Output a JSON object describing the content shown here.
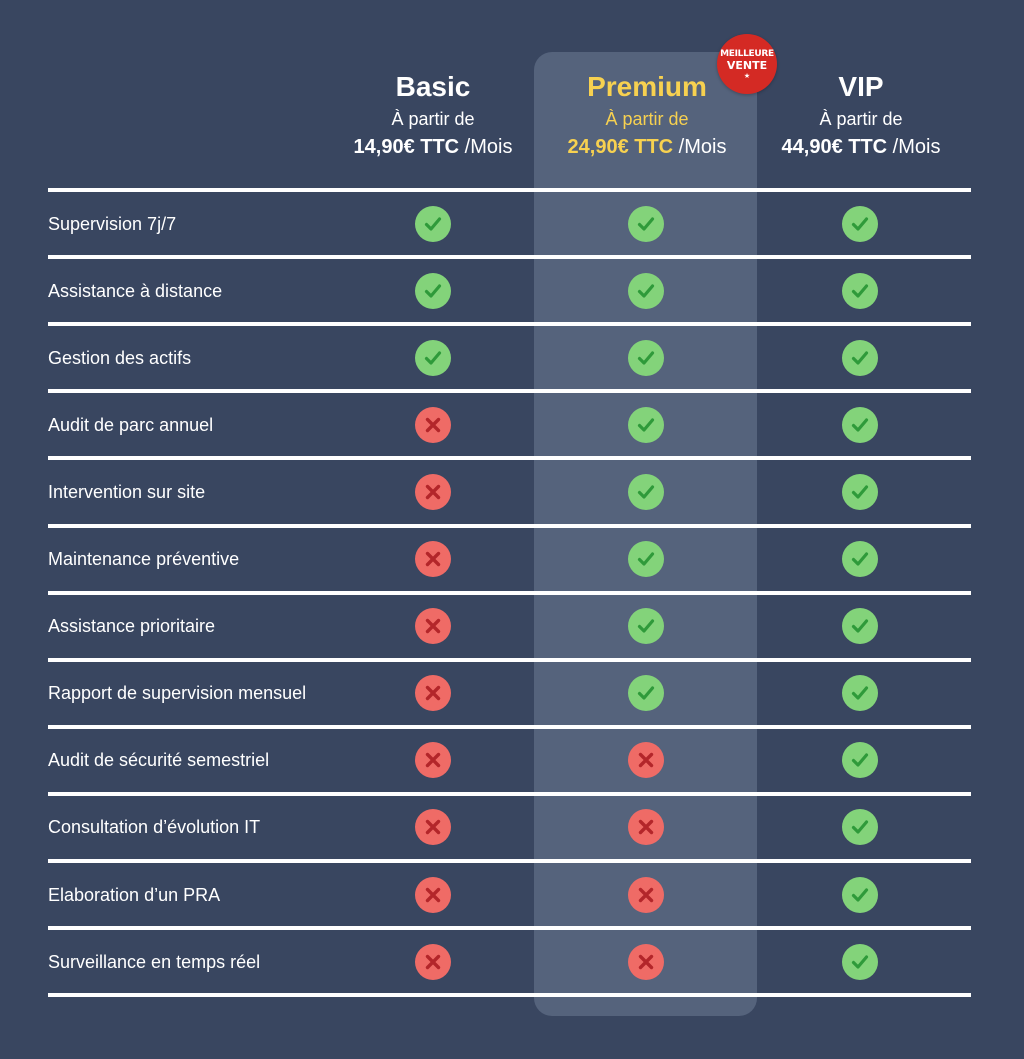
{
  "badge": {
    "line1": "MEILLEURE",
    "line2": "VENTE",
    "star": "★"
  },
  "plans": [
    {
      "name": "Basic",
      "from": "À partir de",
      "amount": "14,90€ TTC",
      "period": " /Mois",
      "featured": false
    },
    {
      "name": "Premium",
      "from": "À partir de",
      "amount": "24,90€ TTC",
      "period": " /Mois",
      "featured": true
    },
    {
      "name": "VIP",
      "from": "À partir de",
      "amount": "44,90€ TTC",
      "period": " /Mois",
      "featured": false
    }
  ],
  "colors": {
    "background": "#394660",
    "highlight": "#55637c",
    "accent": "#f7d150",
    "check": "#83d37a",
    "cross": "#ef6b66",
    "badge": "#d42a24"
  },
  "features": [
    {
      "label": "Supervision 7j/7",
      "values": [
        true,
        true,
        true
      ]
    },
    {
      "label": "Assistance à distance",
      "values": [
        true,
        true,
        true
      ]
    },
    {
      "label": "Gestion des actifs",
      "values": [
        true,
        true,
        true
      ]
    },
    {
      "label": "Audit de parc annuel",
      "values": [
        false,
        true,
        true
      ]
    },
    {
      "label": "Intervention sur site",
      "values": [
        false,
        true,
        true
      ]
    },
    {
      "label": "Maintenance préventive",
      "values": [
        false,
        true,
        true
      ]
    },
    {
      "label": "Assistance prioritaire",
      "values": [
        false,
        true,
        true
      ]
    },
    {
      "label": "Rapport de supervision mensuel",
      "values": [
        false,
        true,
        true
      ]
    },
    {
      "label": "Audit de sécurité semestriel",
      "values": [
        false,
        false,
        true
      ]
    },
    {
      "label": "Consultation d’évolution IT",
      "values": [
        false,
        false,
        true
      ]
    },
    {
      "label": "Elaboration d’un PRA",
      "values": [
        false,
        false,
        true
      ]
    },
    {
      "label": "Surveillance en temps réel",
      "values": [
        false,
        false,
        true
      ]
    }
  ]
}
